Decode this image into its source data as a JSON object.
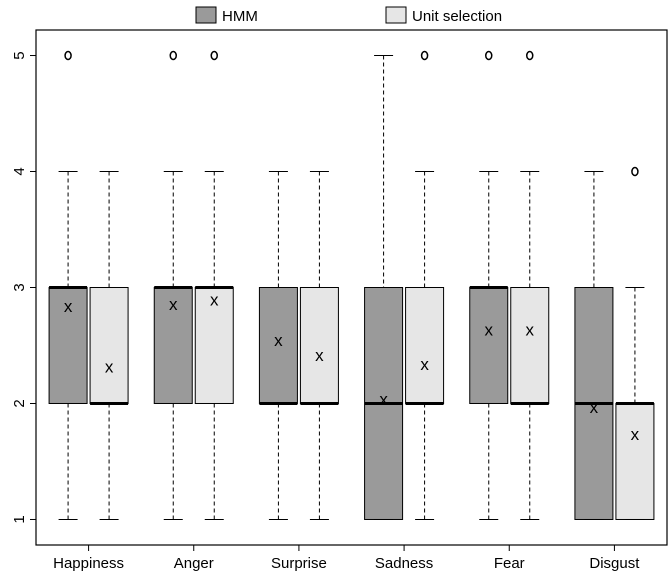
{
  "chart_data": {
    "type": "boxplot",
    "categories": [
      "Happiness",
      "Anger",
      "Surprise",
      "Sadness",
      "Fear",
      "Disgust"
    ],
    "legend": {
      "position": "top",
      "entries": [
        {
          "label": "HMM",
          "color": "#9a9a9a"
        },
        {
          "label": "Unit selection",
          "color": "#e6e6e6"
        }
      ]
    },
    "series": [
      {
        "name": "HMM",
        "color": "#9a9a9a",
        "boxes": [
          {
            "min": 1,
            "q1": 2,
            "median": 3,
            "q3": 3,
            "max": 4,
            "mean": 2.83,
            "outliers": [
              5
            ]
          },
          {
            "min": 1,
            "q1": 2,
            "median": 3,
            "q3": 3,
            "max": 4,
            "mean": 2.85,
            "outliers": [
              5
            ]
          },
          {
            "min": 1,
            "q1": 2,
            "median": 2,
            "q3": 3,
            "max": 4,
            "mean": 2.54,
            "outliers": []
          },
          {
            "min": 1,
            "q1": 1,
            "median": 2,
            "q3": 3,
            "max": 5,
            "mean": 2.03,
            "outliers": []
          },
          {
            "min": 1,
            "q1": 2,
            "median": 3,
            "q3": 3,
            "max": 4,
            "mean": 2.63,
            "outliers": [
              5
            ]
          },
          {
            "min": 1,
            "q1": 1,
            "median": 2,
            "q3": 3,
            "max": 4,
            "mean": 1.96,
            "outliers": []
          }
        ]
      },
      {
        "name": "Unit selection",
        "color": "#e6e6e6",
        "boxes": [
          {
            "min": 1,
            "q1": 2,
            "median": 2,
            "q3": 3,
            "max": 4,
            "mean": 2.31,
            "outliers": []
          },
          {
            "min": 1,
            "q1": 2,
            "median": 3,
            "q3": 3,
            "max": 4,
            "mean": 2.89,
            "outliers": [
              5
            ]
          },
          {
            "min": 1,
            "q1": 2,
            "median": 2,
            "q3": 3,
            "max": 4,
            "mean": 2.41,
            "outliers": []
          },
          {
            "min": 1,
            "q1": 2,
            "median": 2,
            "q3": 3,
            "max": 4,
            "mean": 2.33,
            "outliers": [
              5
            ]
          },
          {
            "min": 1,
            "q1": 2,
            "median": 2,
            "q3": 3,
            "max": 4,
            "mean": 2.63,
            "outliers": [
              5
            ]
          },
          {
            "min": 1,
            "q1": 1,
            "median": 2,
            "q3": 2,
            "max": 3,
            "mean": 1.73,
            "outliers": [
              4
            ]
          }
        ]
      }
    ],
    "y_ticks": [
      1,
      2,
      3,
      4,
      5
    ],
    "ylim": [
      0.78,
      5.22
    ],
    "mean_marker": "x",
    "grid": false,
    "title": "",
    "xlabel": "",
    "ylabel": ""
  }
}
